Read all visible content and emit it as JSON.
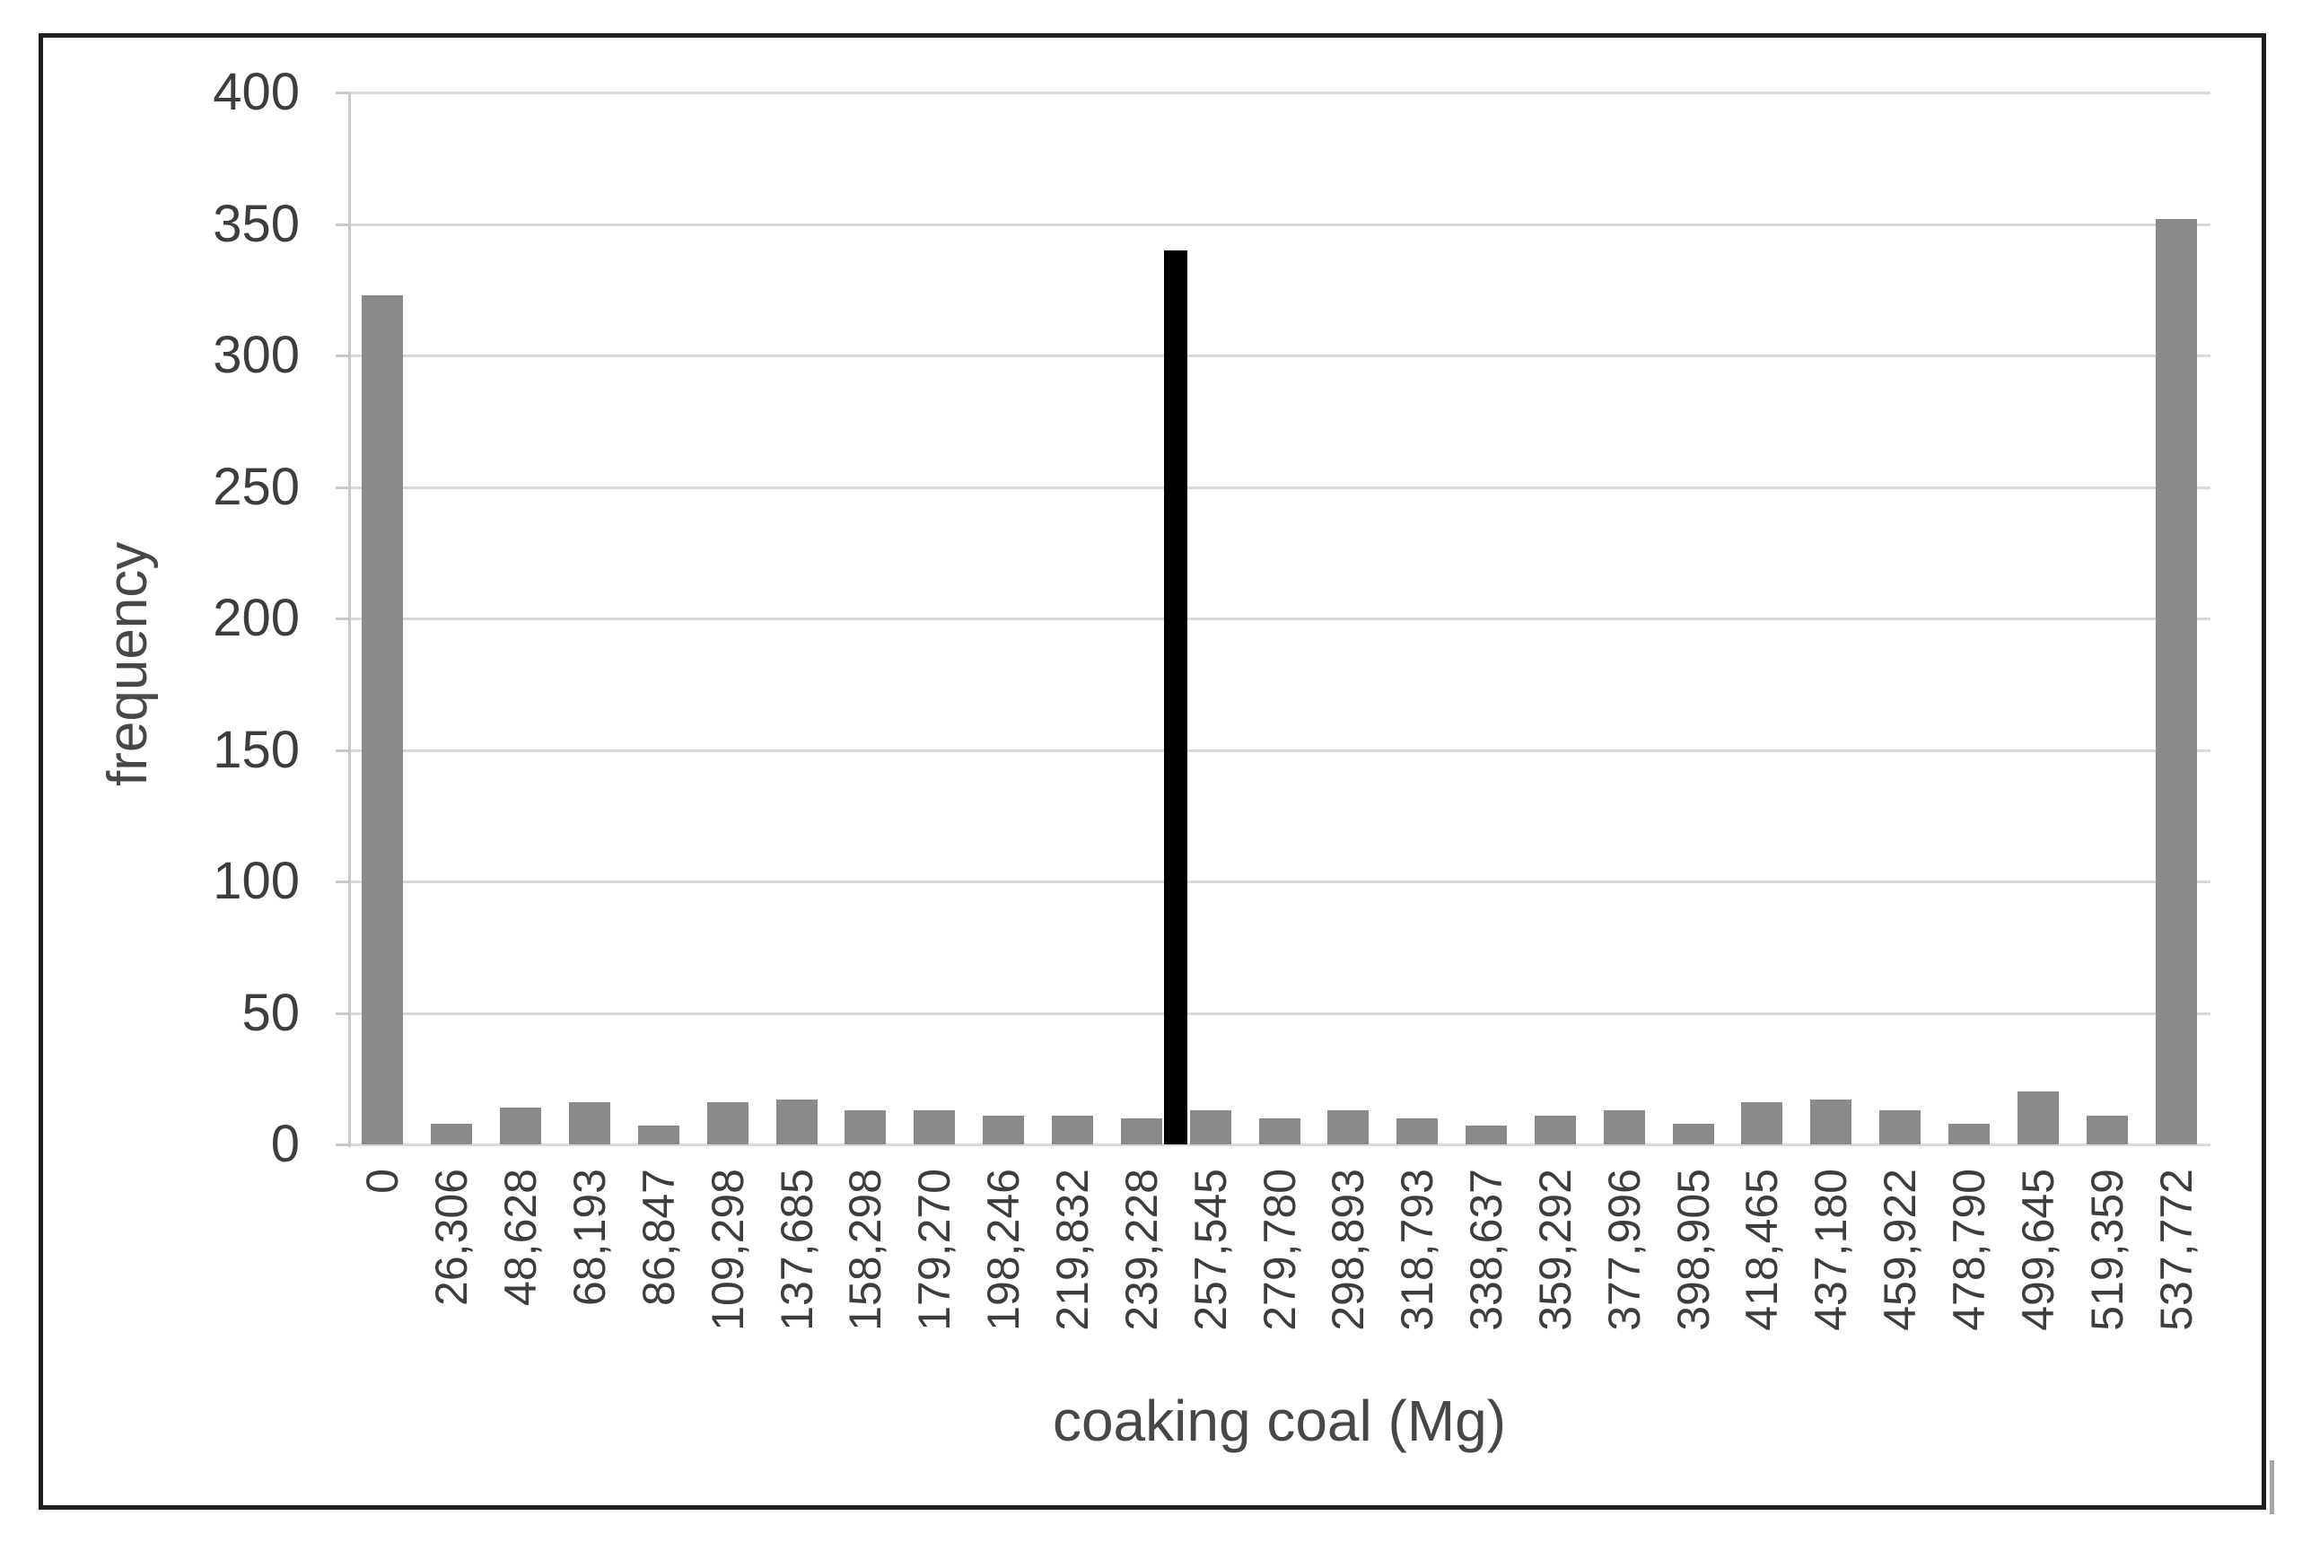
{
  "chart_data": {
    "type": "bar",
    "title": "",
    "xlabel": "coaking coal (Mg)",
    "ylabel": "frequency",
    "ylim": [
      0,
      400
    ],
    "ytick_step": 50,
    "y_ticks": [
      "0",
      "50",
      "100",
      "150",
      "200",
      "250",
      "300",
      "350",
      "400"
    ],
    "grid": true,
    "legend": "none",
    "categories": [
      "0",
      "26,306",
      "48,628",
      "68,193",
      "86,847",
      "109,298",
      "137,685",
      "158,298",
      "179,270",
      "198,246",
      "219,832",
      "239,228",
      "257,545",
      "279,780",
      "298,893",
      "318,793",
      "338,637",
      "359,292",
      "377,996",
      "398,905",
      "418,465",
      "437,180",
      "459,922",
      "478,790",
      "499,645",
      "519,359",
      "537,772"
    ],
    "values": [
      323,
      8,
      14,
      16,
      7,
      16,
      17,
      13,
      13,
      11,
      11,
      10,
      13,
      10,
      13,
      10,
      7,
      11,
      13,
      8,
      16,
      17,
      13,
      8,
      20,
      11,
      352
    ],
    "highlight_bar": {
      "value": 340,
      "position_between": [
        "239,228",
        "257,545"
      ],
      "color": "#000000",
      "note": "narrow black bar inserted between the 12th and 13th histogram bins"
    },
    "colors": {
      "bar": "#8a8a8a",
      "highlight": "#000000",
      "gridline": "#d9d9d9",
      "axis_line": "#c9c9c9",
      "tick_text": "#3d3d3d",
      "title_text": "#474747",
      "frame_border": "#1f1f1f"
    }
  }
}
